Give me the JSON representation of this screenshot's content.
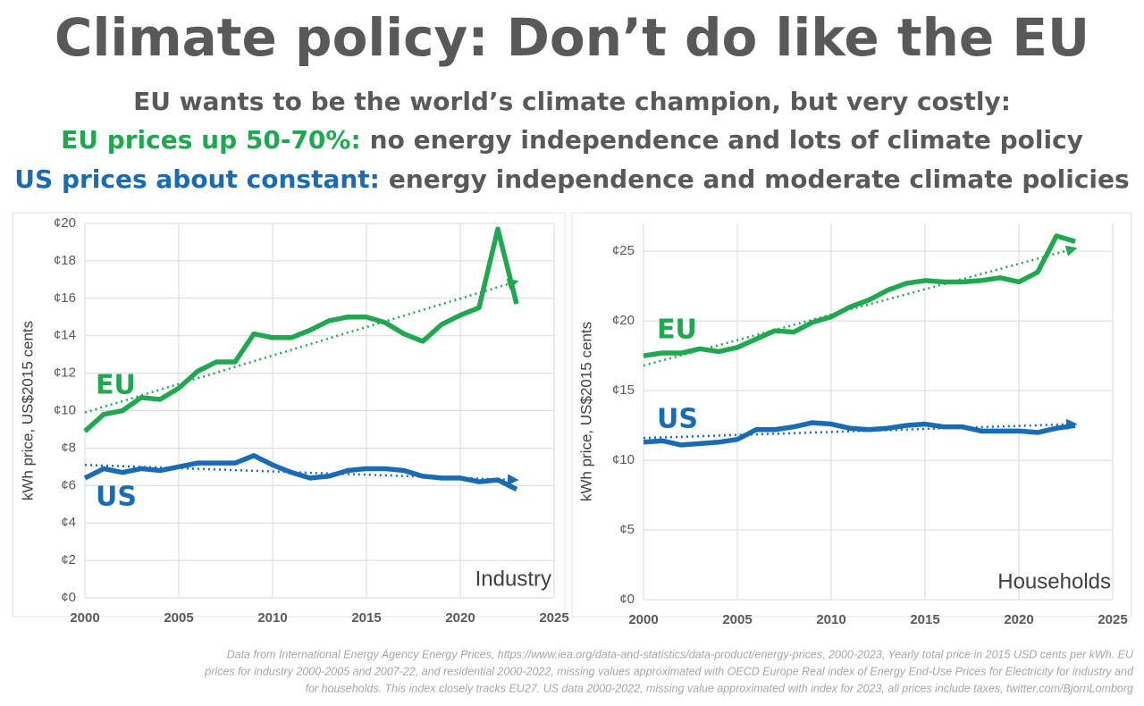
{
  "title": "Climate policy: Don’t do like the EU",
  "lines": [
    {
      "text": "EU wants to be the world’s climate champion, but very costly:"
    },
    {
      "highlight": "EU prices up 50-70%:",
      "color": "#1fa84f",
      "text": "no energy independence and lots of climate policy"
    },
    {
      "highlight": "US prices about constant:",
      "color": "#1a6bb5",
      "text": "energy independence and moderate climate policies"
    }
  ],
  "chart_data": [
    {
      "type": "line",
      "y_label": "kWh price, US$2015 cents",
      "panel_label": "Industry",
      "x": [
        2000,
        2001,
        2002,
        2003,
        2004,
        2005,
        2006,
        2007,
        2008,
        2009,
        2010,
        2011,
        2012,
        2013,
        2014,
        2015,
        2016,
        2017,
        2018,
        2019,
        2020,
        2021,
        2022,
        2023
      ],
      "xlim": [
        2000,
        2025
      ],
      "xticks": [
        2000,
        2005,
        2010,
        2015,
        2020,
        2025
      ],
      "ylim": [
        0,
        20
      ],
      "yticks": [
        {
          "value": 0,
          "label": "¢0"
        },
        {
          "value": 2,
          "label": "¢2"
        },
        {
          "value": 4,
          "label": "¢4"
        },
        {
          "value": 6,
          "label": "¢6"
        },
        {
          "value": 8,
          "label": "¢8"
        },
        {
          "value": 10,
          "label": "¢10"
        },
        {
          "value": 12,
          "label": "¢12"
        },
        {
          "value": 14,
          "label": "¢14"
        },
        {
          "value": 16,
          "label": "¢16"
        },
        {
          "value": 18,
          "label": "¢18"
        },
        {
          "value": 20,
          "label": "¢20"
        }
      ],
      "grid": true,
      "series": [
        {
          "name": "EU",
          "color": "#1fa84f",
          "values": [
            8.9,
            9.8,
            10.0,
            10.7,
            10.6,
            11.2,
            12.1,
            12.6,
            12.6,
            14.1,
            13.9,
            13.9,
            14.3,
            14.8,
            15.0,
            15.0,
            14.7,
            14.1,
            13.7,
            14.6,
            15.1,
            15.5,
            19.7,
            15.7
          ],
          "trend": {
            "x": [
              2000,
              2023
            ],
            "values": [
              9.9,
              16.9
            ]
          }
        },
        {
          "name": "US",
          "color": "#1a6bb5",
          "values": [
            6.4,
            6.9,
            6.7,
            6.9,
            6.8,
            7.0,
            7.2,
            7.2,
            7.2,
            7.6,
            7.1,
            6.7,
            6.4,
            6.5,
            6.8,
            6.9,
            6.9,
            6.8,
            6.5,
            6.4,
            6.4,
            6.2,
            6.3,
            5.8
          ],
          "trend": {
            "x": [
              2000,
              2023
            ],
            "values": [
              7.1,
              6.3
            ]
          }
        }
      ]
    },
    {
      "type": "line",
      "y_label": "kWh price, US$2015 cents",
      "panel_label": "Households",
      "x": [
        2000,
        2001,
        2002,
        2003,
        2004,
        2005,
        2006,
        2007,
        2008,
        2009,
        2010,
        2011,
        2012,
        2013,
        2014,
        2015,
        2016,
        2017,
        2018,
        2019,
        2020,
        2021,
        2022,
        2023
      ],
      "xlim": [
        2000,
        2025
      ],
      "xticks": [
        2000,
        2005,
        2010,
        2015,
        2020,
        2025
      ],
      "ylim": [
        0,
        27
      ],
      "yticks": [
        {
          "value": 0,
          "label": "¢0"
        },
        {
          "value": 5,
          "label": "¢5"
        },
        {
          "value": 10,
          "label": "¢10"
        },
        {
          "value": 15,
          "label": "¢15"
        },
        {
          "value": 20,
          "label": "¢20"
        },
        {
          "value": 25,
          "label": "¢25"
        }
      ],
      "grid": true,
      "series": [
        {
          "name": "EU",
          "color": "#1fa84f",
          "values": [
            17.5,
            17.7,
            17.7,
            18.0,
            17.8,
            18.1,
            18.7,
            19.3,
            19.2,
            19.9,
            20.3,
            21.0,
            21.5,
            22.2,
            22.7,
            22.9,
            22.8,
            22.8,
            22.9,
            23.1,
            22.8,
            23.5,
            26.1,
            25.7
          ],
          "trend": {
            "x": [
              2000,
              2023
            ],
            "values": [
              16.8,
              25.2
            ]
          }
        },
        {
          "name": "US",
          "color": "#1a6bb5",
          "values": [
            11.3,
            11.4,
            11.1,
            11.2,
            11.3,
            11.5,
            12.2,
            12.2,
            12.4,
            12.7,
            12.6,
            12.3,
            12.2,
            12.3,
            12.5,
            12.6,
            12.4,
            12.4,
            12.1,
            12.1,
            12.1,
            12.0,
            12.3,
            12.5
          ],
          "trend": {
            "x": [
              2000,
              2023
            ],
            "values": [
              11.6,
              12.6
            ]
          }
        }
      ]
    }
  ],
  "source": [
    "Data from International Energy Agency Energy Prices, https://www.iea.org/data-and-statistics/data-product/energy-prices, 2000-2023, Yearly total price in 2015 USD cents per kWh. EU",
    "prices for industry 2000-2005 and 2007-22, and residential 2000-2022, missing values approximated with OECD Europe Real index of Energy End-Use Prices for Electricity for industry and",
    "for households. This index closely tracks EU27. US data 2000-2022, missing value approximated with index for 2023, all prices include taxes, twitter.com/BjornLomborg"
  ]
}
